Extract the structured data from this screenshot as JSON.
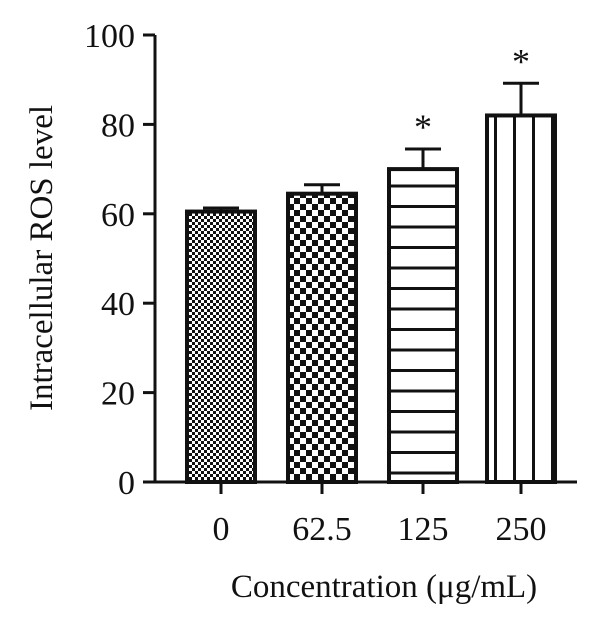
{
  "chart_data": {
    "type": "bar",
    "categories": [
      "0",
      "62.5",
      "125",
      "250"
    ],
    "values": [
      60.5,
      64.5,
      70,
      82
    ],
    "errors": [
      0.8,
      2.0,
      4.5,
      7.2
    ],
    "significance": [
      "",
      "",
      "*",
      "*"
    ],
    "patterns": [
      "fine-checker",
      "coarse-checker",
      "horizontal-stripes",
      "vertical-stripes"
    ],
    "title": "",
    "xlabel": "Concentration (μg/mL)",
    "ylabel": "Intracellular ROS level",
    "ylim": [
      0,
      100
    ],
    "yticks": [
      0,
      20,
      40,
      60,
      80,
      100
    ],
    "grid": false,
    "legend": "none",
    "colors": {
      "bar_stroke": "#111111",
      "bar_fill": "#ffffff",
      "axis": "#111111"
    }
  }
}
